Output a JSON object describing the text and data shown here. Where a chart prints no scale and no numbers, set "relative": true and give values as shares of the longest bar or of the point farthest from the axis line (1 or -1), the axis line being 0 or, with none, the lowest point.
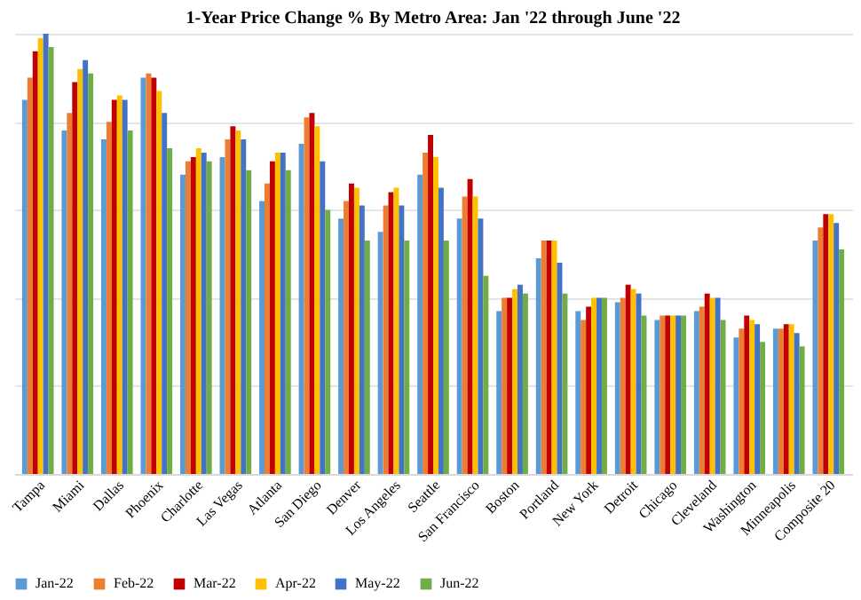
{
  "chart_data": {
    "type": "bar",
    "title": "1-Year Price Change % By Metro Area: Jan '22 through June '22",
    "relative": true,
    "grid": "y",
    "legend": "bottom",
    "categories": [
      "Tampa",
      "Miami",
      "Dallas",
      "Phoenix",
      "Charlotte",
      "Las Vegas",
      "Atlanta",
      "San Diego",
      "Denver",
      "Los Angeles",
      "Seattle",
      "San Francisco",
      "Boston",
      "Portland",
      "New York",
      "Detroit",
      "Chicago",
      "Cleveland",
      "Washington",
      "Minneapolis",
      "Composite 20"
    ],
    "series": [
      {
        "name": "Jan-22",
        "color": "#5b9bd5",
        "values": [
          0.85,
          0.78,
          0.76,
          0.9,
          0.68,
          0.72,
          0.62,
          0.75,
          0.58,
          0.55,
          0.68,
          0.58,
          0.37,
          0.49,
          0.37,
          0.39,
          0.35,
          0.37,
          0.31,
          0.33,
          0.53
        ]
      },
      {
        "name": "Feb-22",
        "color": "#ed7d31",
        "values": [
          0.9,
          0.82,
          0.8,
          0.91,
          0.71,
          0.76,
          0.66,
          0.81,
          0.62,
          0.61,
          0.73,
          0.63,
          0.4,
          0.53,
          0.35,
          0.4,
          0.36,
          0.38,
          0.33,
          0.33,
          0.56
        ]
      },
      {
        "name": "Mar-22",
        "color": "#c00000",
        "values": [
          0.96,
          0.89,
          0.85,
          0.9,
          0.72,
          0.79,
          0.71,
          0.82,
          0.66,
          0.64,
          0.77,
          0.67,
          0.4,
          0.53,
          0.38,
          0.43,
          0.36,
          0.41,
          0.36,
          0.34,
          0.59
        ]
      },
      {
        "name": "Apr-22",
        "color": "#ffc000",
        "values": [
          0.99,
          0.92,
          0.86,
          0.87,
          0.74,
          0.78,
          0.73,
          0.79,
          0.65,
          0.65,
          0.72,
          0.63,
          0.42,
          0.53,
          0.4,
          0.42,
          0.36,
          0.4,
          0.35,
          0.34,
          0.59
        ]
      },
      {
        "name": "May-22",
        "color": "#4472c4",
        "values": [
          1.0,
          0.94,
          0.85,
          0.82,
          0.73,
          0.76,
          0.73,
          0.71,
          0.61,
          0.61,
          0.65,
          0.58,
          0.43,
          0.48,
          0.4,
          0.41,
          0.36,
          0.4,
          0.34,
          0.32,
          0.57
        ]
      },
      {
        "name": "Jun-22",
        "color": "#70ad47",
        "values": [
          0.97,
          0.91,
          0.78,
          0.74,
          0.71,
          0.69,
          0.69,
          0.6,
          0.53,
          0.53,
          0.53,
          0.45,
          0.41,
          0.41,
          0.4,
          0.36,
          0.36,
          0.35,
          0.3,
          0.29,
          0.51
        ]
      }
    ]
  }
}
